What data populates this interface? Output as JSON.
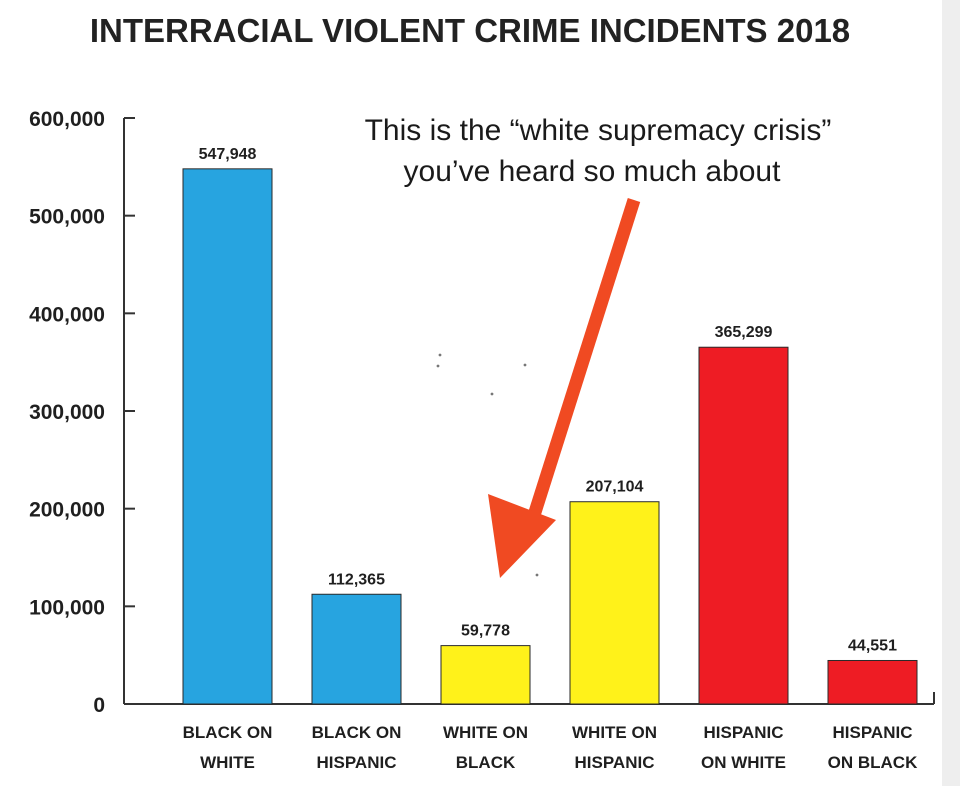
{
  "chart_data": {
    "type": "bar",
    "title": "INTERRACIAL VIOLENT CRIME INCIDENTS 2018",
    "categories": [
      [
        "BLACK ON",
        "WHITE"
      ],
      [
        "BLACK ON",
        "HISPANIC"
      ],
      [
        "WHITE ON",
        "BLACK"
      ],
      [
        "WHITE ON",
        "HISPANIC"
      ],
      [
        "HISPANIC",
        "ON WHITE"
      ],
      [
        "HISPANIC",
        "ON BLACK"
      ]
    ],
    "values": [
      547948,
      112365,
      59778,
      207104,
      365299,
      44551
    ],
    "value_labels": [
      "547,948",
      "112,365",
      "59,778",
      "207,104",
      "365,299",
      "44,551"
    ],
    "bar_colors": [
      "#27a4e0",
      "#27a4e0",
      "#fff21a",
      "#fff21a",
      "#ee1c24",
      "#ee1c24"
    ],
    "ylim": [
      0,
      600000
    ],
    "yticks": [
      {
        "value": 0,
        "label": "0"
      },
      {
        "value": 100000,
        "label": "100,000"
      },
      {
        "value": 200000,
        "label": "200,000"
      },
      {
        "value": 300000,
        "label": "300,000"
      },
      {
        "value": 400000,
        "label": "400,000"
      },
      {
        "value": 500000,
        "label": "500,000"
      },
      {
        "value": 600000,
        "label": "600,000"
      }
    ],
    "grid": false,
    "xlabel": "",
    "ylabel": "",
    "annotation": {
      "lines": [
        "This is the “white supremacy crisis”",
        "you’ve heard so much about"
      ],
      "arrow_color": "#f04a22",
      "points_to": "WHITE ON BLACK"
    }
  }
}
